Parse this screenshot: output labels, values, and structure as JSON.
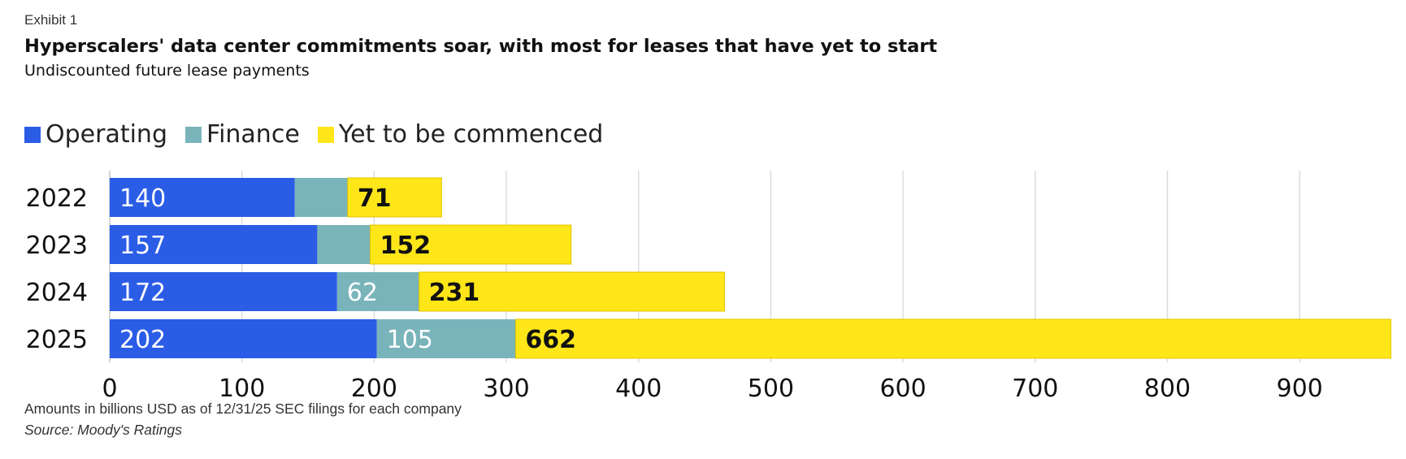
{
  "chart_data": {
    "type": "bar",
    "orientation": "horizontal",
    "stacked": true,
    "exhibit": "Exhibit 1",
    "title": "Hyperscalers' data center commitments soar, with most for leases that have yet to start",
    "subtitle": "Undiscounted future lease payments",
    "categories": [
      "2022",
      "2023",
      "2024",
      "2025"
    ],
    "series": [
      {
        "name": "Operating",
        "color": "#2a5ce6",
        "label_color": "#ffffff",
        "values": [
          140,
          157,
          172,
          202
        ],
        "labels": [
          "140",
          "157",
          "172",
          "202"
        ]
      },
      {
        "name": "Finance",
        "color": "#7ab4bb",
        "label_color": "#ffffff",
        "values": [
          40,
          40,
          62,
          105
        ],
        "labels": [
          "",
          "",
          "62",
          "105"
        ]
      },
      {
        "name": "Yet to be commenced",
        "color": "#ffe619",
        "label_color": "#111111",
        "values": [
          71,
          152,
          231,
          662
        ],
        "labels": [
          "71",
          "152",
          "231",
          "662"
        ]
      }
    ],
    "xlim": [
      0,
      970
    ],
    "xticks": [
      0,
      100,
      200,
      300,
      400,
      500,
      600,
      700,
      800,
      900
    ],
    "grid": true,
    "legend_position": "top-left",
    "footnote": "Amounts in billions USD as of 12/31/25 SEC filings for each company",
    "source": "Source: Moody's Ratings"
  }
}
